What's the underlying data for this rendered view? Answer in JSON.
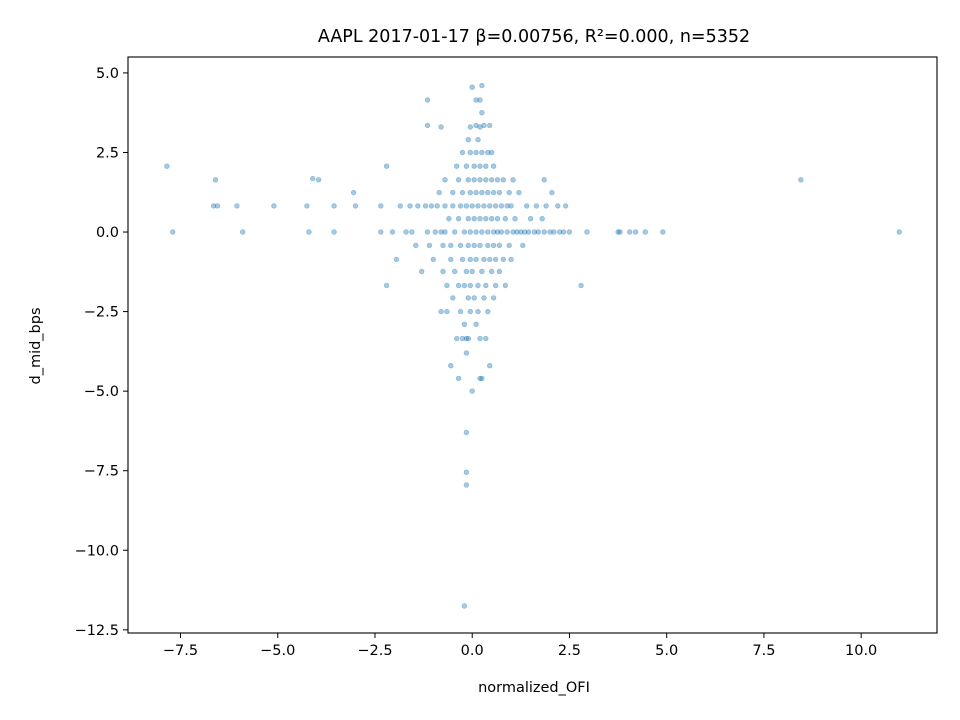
{
  "chart_data": {
    "type": "scatter",
    "title": "AAPL 2017-01-17  β=0.00756, R²=0.000, n=5352",
    "xlabel": "normalized_OFI",
    "ylabel": "d_mid_bps",
    "xlim": [
      -8.85,
      11.95
    ],
    "ylim": [
      -12.6,
      5.5
    ],
    "xticks": [
      -7.5,
      -5.0,
      -2.5,
      0.0,
      2.5,
      5.0,
      7.5,
      10.0
    ],
    "xtick_labels": [
      "−7.5",
      "−5.0",
      "−2.5",
      "0.0",
      "2.5",
      "5.0",
      "7.5",
      "10.0"
    ],
    "yticks": [
      5.0,
      2.5,
      0.0,
      -2.5,
      -5.0,
      -7.5,
      -10.0,
      -12.5
    ],
    "ytick_labels": [
      "5.0",
      "2.5",
      "0.0",
      "−2.5",
      "−5.0",
      "−7.5",
      "−10.0",
      "−12.5"
    ],
    "grid": false,
    "marker_color": "#1f77b4",
    "marker_alpha": 0.4,
    "series": [
      {
        "values": [
          [
            -7.85,
            2.07
          ],
          [
            -7.7,
            0.0
          ],
          [
            -6.6,
            1.64
          ],
          [
            -6.65,
            0.82
          ],
          [
            -6.55,
            0.82
          ],
          [
            -6.05,
            0.82
          ],
          [
            -5.9,
            0.0
          ],
          [
            -5.1,
            0.82
          ],
          [
            -4.25,
            0.82
          ],
          [
            -4.2,
            0.0
          ],
          [
            -4.1,
            1.68
          ],
          [
            -3.95,
            1.64
          ],
          [
            -3.55,
            0.82
          ],
          [
            -3.55,
            0.0
          ],
          [
            -3.05,
            1.24
          ],
          [
            -3.0,
            0.82
          ],
          [
            -2.35,
            0.82
          ],
          [
            -2.35,
            0.0
          ],
          [
            -2.2,
            2.07
          ],
          [
            -2.2,
            -1.68
          ],
          [
            -2.05,
            0.0
          ],
          [
            -1.95,
            -0.86
          ],
          [
            -1.85,
            0.82
          ],
          [
            -1.7,
            0.0
          ],
          [
            -1.6,
            0.82
          ],
          [
            -1.55,
            0.0
          ],
          [
            -1.45,
            -0.42
          ],
          [
            -1.4,
            0.82
          ],
          [
            -1.3,
            -1.24
          ],
          [
            -1.2,
            0.82
          ],
          [
            -1.15,
            4.15
          ],
          [
            -1.15,
            3.35
          ],
          [
            -1.15,
            0.0
          ],
          [
            -1.1,
            -0.42
          ],
          [
            -1.05,
            0.82
          ],
          [
            -1.0,
            -0.86
          ],
          [
            -0.95,
            0.0
          ],
          [
            -0.9,
            0.82
          ],
          [
            -0.85,
            1.24
          ],
          [
            -0.8,
            3.3
          ],
          [
            -0.8,
            0.0
          ],
          [
            -0.8,
            -2.5
          ],
          [
            -0.75,
            -1.24
          ],
          [
            -0.75,
            -0.42
          ],
          [
            -0.7,
            1.64
          ],
          [
            -0.7,
            0.82
          ],
          [
            -0.7,
            0.0
          ],
          [
            -0.65,
            -1.68
          ],
          [
            -0.65,
            -2.5
          ],
          [
            -0.6,
            0.42
          ],
          [
            -0.55,
            -0.86
          ],
          [
            -0.55,
            -0.42
          ],
          [
            -0.55,
            -4.2
          ],
          [
            -0.5,
            1.24
          ],
          [
            -0.5,
            0.82
          ],
          [
            -0.5,
            -2.07
          ],
          [
            -0.45,
            0.0
          ],
          [
            -0.45,
            -1.24
          ],
          [
            -0.4,
            2.07
          ],
          [
            -0.4,
            -3.35
          ],
          [
            -0.35,
            1.64
          ],
          [
            -0.35,
            0.42
          ],
          [
            -0.35,
            -1.68
          ],
          [
            -0.35,
            -4.6
          ],
          [
            -0.3,
            0.82
          ],
          [
            -0.3,
            -0.42
          ],
          [
            -0.3,
            -2.5
          ],
          [
            -0.25,
            2.5
          ],
          [
            -0.25,
            1.24
          ],
          [
            -0.25,
            -0.86
          ],
          [
            -0.25,
            -3.35
          ],
          [
            -0.2,
            0.0
          ],
          [
            -0.2,
            -1.68
          ],
          [
            -0.2,
            -2.9
          ],
          [
            -0.15,
            2.07
          ],
          [
            -0.15,
            0.82
          ],
          [
            -0.15,
            -1.24
          ],
          [
            -0.15,
            -3.35
          ],
          [
            -0.15,
            -3.8
          ],
          [
            -0.15,
            -6.3
          ],
          [
            -0.15,
            -7.55
          ],
          [
            -0.15,
            -7.95
          ],
          [
            -0.2,
            -11.75
          ],
          [
            -0.1,
            2.9
          ],
          [
            -0.1,
            1.64
          ],
          [
            -0.1,
            0.42
          ],
          [
            -0.1,
            -0.42
          ],
          [
            -0.1,
            -2.07
          ],
          [
            -0.1,
            -3.35
          ],
          [
            -0.05,
            3.3
          ],
          [
            -0.05,
            2.5
          ],
          [
            -0.05,
            1.24
          ],
          [
            -0.05,
            0.0
          ],
          [
            -0.05,
            -0.86
          ],
          [
            -0.05,
            -1.68
          ],
          [
            -0.05,
            -2.5
          ],
          [
            0.0,
            4.55
          ],
          [
            0.0,
            0.82
          ],
          [
            0.0,
            -1.24
          ],
          [
            0.0,
            -5.0
          ],
          [
            0.05,
            2.07
          ],
          [
            0.05,
            1.64
          ],
          [
            0.05,
            0.42
          ],
          [
            0.05,
            -0.42
          ],
          [
            0.05,
            -2.07
          ],
          [
            0.1,
            4.15
          ],
          [
            0.1,
            3.35
          ],
          [
            0.1,
            2.5
          ],
          [
            0.1,
            1.24
          ],
          [
            0.1,
            0.0
          ],
          [
            0.1,
            -0.86
          ],
          [
            0.1,
            -2.9
          ],
          [
            0.15,
            2.9
          ],
          [
            0.15,
            0.82
          ],
          [
            0.15,
            -1.68
          ],
          [
            0.15,
            -2.5
          ],
          [
            0.2,
            4.15
          ],
          [
            0.2,
            3.3
          ],
          [
            0.2,
            2.07
          ],
          [
            0.2,
            1.64
          ],
          [
            0.2,
            0.42
          ],
          [
            0.2,
            -0.42
          ],
          [
            0.2,
            -3.35
          ],
          [
            0.2,
            -4.6
          ],
          [
            0.25,
            4.6
          ],
          [
            0.25,
            3.75
          ],
          [
            0.25,
            2.5
          ],
          [
            0.25,
            1.24
          ],
          [
            0.25,
            0.0
          ],
          [
            0.25,
            -1.24
          ],
          [
            0.25,
            -4.6
          ],
          [
            0.3,
            3.35
          ],
          [
            0.3,
            0.82
          ],
          [
            0.3,
            -0.86
          ],
          [
            0.3,
            -2.07
          ],
          [
            0.35,
            2.07
          ],
          [
            0.35,
            1.64
          ],
          [
            0.35,
            0.42
          ],
          [
            0.35,
            -1.68
          ],
          [
            0.35,
            -3.35
          ],
          [
            0.4,
            2.5
          ],
          [
            0.4,
            1.24
          ],
          [
            0.4,
            0.0
          ],
          [
            0.4,
            -0.42
          ],
          [
            0.4,
            -2.5
          ],
          [
            0.45,
            3.35
          ],
          [
            0.45,
            0.82
          ],
          [
            0.45,
            -0.86
          ],
          [
            0.45,
            -4.2
          ],
          [
            0.5,
            2.5
          ],
          [
            0.5,
            1.64
          ],
          [
            0.5,
            0.42
          ],
          [
            0.5,
            -1.24
          ],
          [
            0.55,
            2.07
          ],
          [
            0.55,
            1.24
          ],
          [
            0.55,
            0.0
          ],
          [
            0.55,
            -0.42
          ],
          [
            0.55,
            -2.07
          ],
          [
            0.6,
            0.82
          ],
          [
            0.6,
            -0.86
          ],
          [
            0.6,
            -1.68
          ],
          [
            0.65,
            1.64
          ],
          [
            0.65,
            0.42
          ],
          [
            0.65,
            0.0
          ],
          [
            0.7,
            1.24
          ],
          [
            0.7,
            -0.42
          ],
          [
            0.7,
            -1.24
          ],
          [
            0.75,
            0.82
          ],
          [
            0.75,
            0.0
          ],
          [
            0.8,
            1.64
          ],
          [
            0.8,
            -0.86
          ],
          [
            0.85,
            0.42
          ],
          [
            0.85,
            -1.68
          ],
          [
            0.9,
            0.82
          ],
          [
            0.9,
            0.0
          ],
          [
            0.95,
            1.24
          ],
          [
            0.95,
            -0.42
          ],
          [
            1.0,
            0.82
          ],
          [
            1.0,
            -0.86
          ],
          [
            1.05,
            0.0
          ],
          [
            1.05,
            1.64
          ],
          [
            1.1,
            0.42
          ],
          [
            1.15,
            0.0
          ],
          [
            1.2,
            1.24
          ],
          [
            1.25,
            0.0
          ],
          [
            1.3,
            -0.42
          ],
          [
            1.35,
            0.0
          ],
          [
            1.4,
            0.82
          ],
          [
            1.45,
            0.0
          ],
          [
            1.5,
            0.42
          ],
          [
            1.6,
            0.0
          ],
          [
            1.65,
            0.82
          ],
          [
            1.7,
            0.0
          ],
          [
            1.8,
            0.42
          ],
          [
            1.85,
            1.64
          ],
          [
            1.85,
            0.0
          ],
          [
            1.9,
            0.82
          ],
          [
            2.0,
            0.0
          ],
          [
            2.05,
            1.24
          ],
          [
            2.1,
            0.0
          ],
          [
            2.2,
            0.82
          ],
          [
            2.25,
            0.0
          ],
          [
            2.35,
            0.0
          ],
          [
            2.4,
            0.82
          ],
          [
            2.5,
            0.0
          ],
          [
            2.8,
            -1.68
          ],
          [
            2.95,
            0.0
          ],
          [
            3.75,
            0.0
          ],
          [
            3.8,
            0.0
          ],
          [
            4.05,
            0.0
          ],
          [
            4.2,
            0.0
          ],
          [
            4.45,
            0.0
          ],
          [
            4.9,
            0.0
          ],
          [
            8.45,
            1.64
          ],
          [
            10.98,
            0.0
          ]
        ]
      }
    ]
  }
}
